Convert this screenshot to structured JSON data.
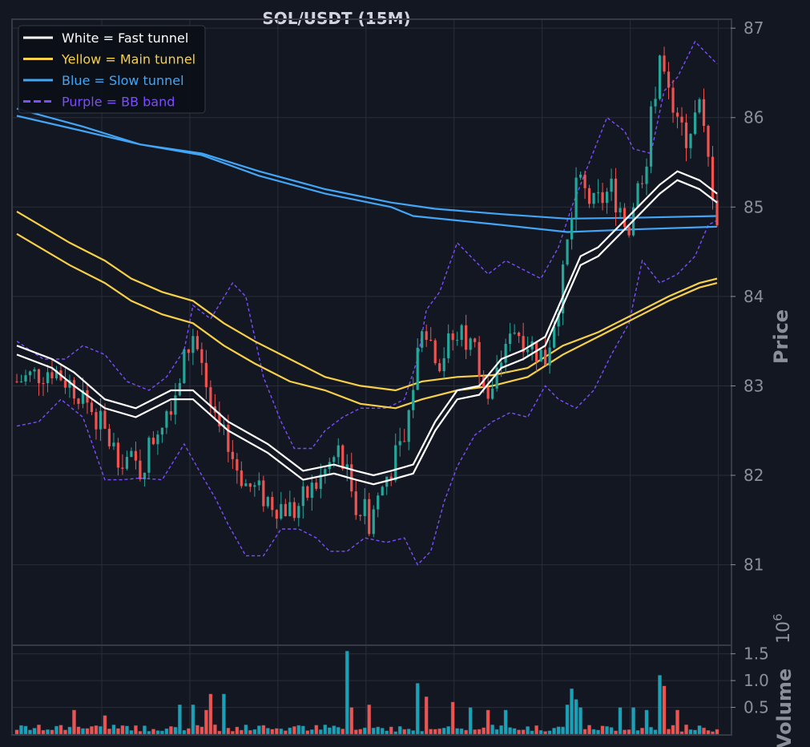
{
  "chart_data": {
    "type": "candlestick",
    "title": "SOL/USDT (15M)",
    "ylabel": "Price",
    "volume_label": "Volume",
    "volume_exponent": "10",
    "volume_exponent_power": "6",
    "price_ticks": [
      81,
      82,
      83,
      84,
      85,
      86,
      87
    ],
    "volume_ticks": [
      "0.5",
      "1.0",
      "1.5"
    ],
    "ylim": [
      80.1,
      87.1
    ],
    "volume_ylim_millions": [
      0,
      1.6
    ],
    "candle_count": 160,
    "colors": {
      "background": "#131722",
      "grid": "#2a2e39",
      "up": "#26a69a",
      "down": "#ef5350",
      "volume_up": "#17a2b8",
      "volume_down": "#ef5350",
      "fast": "#ffffff",
      "main": "#f7d04a",
      "slow": "#42a5f5",
      "bb": "#7c4dff"
    },
    "legend": [
      {
        "label": "White = Fast tunnel",
        "color": "#ffffff",
        "style": "solid"
      },
      {
        "label": "Yellow = Main tunnel",
        "color": "#f7d04a",
        "style": "solid"
      },
      {
        "label": "Blue = Slow tunnel",
        "color": "#42a5f5",
        "style": "solid"
      },
      {
        "label": "Purple = BB band",
        "color": "#7c4dff",
        "style": "dashed"
      }
    ],
    "close_path": [
      [
        0,
        83.05
      ],
      [
        8,
        83.2
      ],
      [
        15,
        82.9
      ],
      [
        22,
        82.3
      ],
      [
        28,
        82.05
      ],
      [
        32,
        82.55
      ],
      [
        36,
        82.95
      ],
      [
        40,
        83.6
      ],
      [
        45,
        82.6
      ],
      [
        52,
        81.9
      ],
      [
        58,
        81.7
      ],
      [
        63,
        81.6
      ],
      [
        68,
        81.9
      ],
      [
        73,
        82.25
      ],
      [
        77,
        81.7
      ],
      [
        80,
        81.5
      ],
      [
        84,
        82.0
      ],
      [
        88,
        82.35
      ],
      [
        92,
        83.7
      ],
      [
        96,
        83.3
      ],
      [
        100,
        83.6
      ],
      [
        104,
        83.4
      ],
      [
        108,
        82.9
      ],
      [
        112,
        83.7
      ],
      [
        116,
        83.5
      ],
      [
        120,
        83.3
      ],
      [
        124,
        84.2
      ],
      [
        127,
        85.3
      ],
      [
        131,
        85.0
      ],
      [
        135,
        85.2
      ],
      [
        139,
        84.8
      ],
      [
        143,
        85.6
      ],
      [
        146,
        86.7
      ],
      [
        149,
        86.0
      ],
      [
        152,
        85.8
      ],
      [
        155,
        86.1
      ],
      [
        159,
        84.9
      ]
    ],
    "fast_upper": [
      [
        0,
        83.45
      ],
      [
        8,
        83.3
      ],
      [
        13,
        83.15
      ],
      [
        20,
        82.85
      ],
      [
        27,
        82.75
      ],
      [
        35,
        82.95
      ],
      [
        40,
        82.95
      ],
      [
        48,
        82.6
      ],
      [
        57,
        82.35
      ],
      [
        65,
        82.05
      ],
      [
        72,
        82.12
      ],
      [
        77,
        82.05
      ],
      [
        81,
        82.0
      ],
      [
        85,
        82.05
      ],
      [
        90,
        82.12
      ],
      [
        95,
        82.6
      ],
      [
        100,
        82.95
      ],
      [
        105,
        83.0
      ],
      [
        110,
        83.3
      ],
      [
        115,
        83.4
      ],
      [
        120,
        83.55
      ],
      [
        124,
        84.0
      ],
      [
        128,
        84.45
      ],
      [
        132,
        84.55
      ],
      [
        137,
        84.8
      ],
      [
        141,
        85.0
      ],
      [
        146,
        85.25
      ],
      [
        150,
        85.4
      ],
      [
        155,
        85.3
      ],
      [
        159,
        85.15
      ]
    ],
    "fast_lower": [
      [
        0,
        83.35
      ],
      [
        8,
        83.2
      ],
      [
        13,
        83.0
      ],
      [
        20,
        82.75
      ],
      [
        27,
        82.65
      ],
      [
        35,
        82.85
      ],
      [
        40,
        82.85
      ],
      [
        48,
        82.5
      ],
      [
        57,
        82.25
      ],
      [
        65,
        81.95
      ],
      [
        72,
        82.02
      ],
      [
        77,
        81.95
      ],
      [
        81,
        81.9
      ],
      [
        85,
        81.95
      ],
      [
        90,
        82.02
      ],
      [
        95,
        82.5
      ],
      [
        100,
        82.85
      ],
      [
        105,
        82.9
      ],
      [
        110,
        83.2
      ],
      [
        115,
        83.3
      ],
      [
        120,
        83.45
      ],
      [
        124,
        83.9
      ],
      [
        128,
        84.35
      ],
      [
        132,
        84.45
      ],
      [
        137,
        84.7
      ],
      [
        141,
        84.9
      ],
      [
        146,
        85.15
      ],
      [
        150,
        85.3
      ],
      [
        155,
        85.2
      ],
      [
        159,
        85.05
      ]
    ],
    "main_upper": [
      [
        0,
        84.95
      ],
      [
        12,
        84.6
      ],
      [
        20,
        84.4
      ],
      [
        26,
        84.2
      ],
      [
        33,
        84.05
      ],
      [
        40,
        83.95
      ],
      [
        47,
        83.7
      ],
      [
        54,
        83.5
      ],
      [
        62,
        83.3
      ],
      [
        70,
        83.1
      ],
      [
        78,
        83.0
      ],
      [
        86,
        82.95
      ],
      [
        92,
        83.05
      ],
      [
        100,
        83.1
      ],
      [
        108,
        83.12
      ],
      [
        116,
        83.2
      ],
      [
        124,
        83.45
      ],
      [
        132,
        83.6
      ],
      [
        140,
        83.8
      ],
      [
        148,
        84.0
      ],
      [
        155,
        84.15
      ],
      [
        159,
        84.2
      ]
    ],
    "main_lower": [
      [
        0,
        84.7
      ],
      [
        12,
        84.35
      ],
      [
        20,
        84.15
      ],
      [
        26,
        83.95
      ],
      [
        33,
        83.8
      ],
      [
        40,
        83.7
      ],
      [
        47,
        83.45
      ],
      [
        54,
        83.25
      ],
      [
        62,
        83.05
      ],
      [
        70,
        82.95
      ],
      [
        78,
        82.8
      ],
      [
        86,
        82.75
      ],
      [
        92,
        82.85
      ],
      [
        100,
        82.95
      ],
      [
        108,
        83.0
      ],
      [
        116,
        83.1
      ],
      [
        124,
        83.35
      ],
      [
        132,
        83.55
      ],
      [
        140,
        83.75
      ],
      [
        148,
        83.95
      ],
      [
        155,
        84.1
      ],
      [
        159,
        84.15
      ]
    ],
    "slow_upper": [
      [
        0,
        86.1
      ],
      [
        15,
        85.9
      ],
      [
        28,
        85.7
      ],
      [
        42,
        85.6
      ],
      [
        55,
        85.4
      ],
      [
        70,
        85.2
      ],
      [
        85,
        85.05
      ],
      [
        95,
        84.98
      ],
      [
        110,
        84.92
      ],
      [
        125,
        84.87
      ],
      [
        140,
        84.88
      ],
      [
        159,
        84.9
      ]
    ],
    "slow_lower": [
      [
        0,
        86.02
      ],
      [
        15,
        85.85
      ],
      [
        28,
        85.7
      ],
      [
        42,
        85.58
      ],
      [
        55,
        85.35
      ],
      [
        70,
        85.15
      ],
      [
        85,
        85.0
      ],
      [
        90,
        84.9
      ],
      [
        110,
        84.8
      ],
      [
        125,
        84.72
      ],
      [
        140,
        84.75
      ],
      [
        159,
        84.78
      ]
    ],
    "bb_upper": [
      [
        0,
        83.5
      ],
      [
        6,
        83.3
      ],
      [
        11,
        83.3
      ],
      [
        15,
        83.45
      ],
      [
        20,
        83.35
      ],
      [
        25,
        83.05
      ],
      [
        30,
        82.95
      ],
      [
        34,
        83.1
      ],
      [
        38,
        83.4
      ],
      [
        40,
        83.9
      ],
      [
        44,
        83.75
      ],
      [
        49,
        84.15
      ],
      [
        52,
        84.0
      ],
      [
        56,
        83.1
      ],
      [
        60,
        82.6
      ],
      [
        63,
        82.3
      ],
      [
        67,
        82.3
      ],
      [
        70,
        82.5
      ],
      [
        74,
        82.65
      ],
      [
        78,
        82.75
      ],
      [
        84,
        82.75
      ],
      [
        88,
        82.85
      ],
      [
        91,
        83.3
      ],
      [
        93,
        83.85
      ],
      [
        96,
        84.05
      ],
      [
        100,
        84.6
      ],
      [
        103,
        84.45
      ],
      [
        107,
        84.25
      ],
      [
        111,
        84.4
      ],
      [
        115,
        84.3
      ],
      [
        119,
        84.2
      ],
      [
        123,
        84.55
      ],
      [
        126,
        85.0
      ],
      [
        130,
        85.5
      ],
      [
        134,
        86.0
      ],
      [
        138,
        85.85
      ],
      [
        140,
        85.65
      ],
      [
        144,
        85.6
      ],
      [
        147,
        86.3
      ],
      [
        150,
        86.45
      ],
      [
        154,
        86.85
      ],
      [
        157,
        86.7
      ],
      [
        159,
        86.6
      ]
    ],
    "bb_lower": [
      [
        0,
        82.55
      ],
      [
        5,
        82.6
      ],
      [
        10,
        82.85
      ],
      [
        15,
        82.65
      ],
      [
        20,
        81.95
      ],
      [
        24,
        81.95
      ],
      [
        28,
        81.97
      ],
      [
        33,
        81.95
      ],
      [
        38,
        82.35
      ],
      [
        42,
        82.0
      ],
      [
        45,
        81.75
      ],
      [
        48,
        81.45
      ],
      [
        52,
        81.1
      ],
      [
        56,
        81.1
      ],
      [
        60,
        81.4
      ],
      [
        64,
        81.4
      ],
      [
        68,
        81.3
      ],
      [
        71,
        81.15
      ],
      [
        75,
        81.15
      ],
      [
        79,
        81.3
      ],
      [
        84,
        81.25
      ],
      [
        88,
        81.3
      ],
      [
        91,
        81.0
      ],
      [
        94,
        81.15
      ],
      [
        97,
        81.7
      ],
      [
        100,
        82.1
      ],
      [
        104,
        82.45
      ],
      [
        108,
        82.6
      ],
      [
        112,
        82.7
      ],
      [
        116,
        82.65
      ],
      [
        120,
        83.0
      ],
      [
        123,
        82.85
      ],
      [
        127,
        82.75
      ],
      [
        131,
        82.95
      ],
      [
        135,
        83.35
      ],
      [
        139,
        83.7
      ],
      [
        142,
        84.4
      ],
      [
        146,
        84.15
      ],
      [
        150,
        84.25
      ],
      [
        154,
        84.45
      ],
      [
        157,
        84.8
      ],
      [
        159,
        84.85
      ]
    ],
    "volume_spikes": [
      [
        13,
        0.45
      ],
      [
        20,
        0.35
      ],
      [
        37,
        0.55
      ],
      [
        40,
        0.55
      ],
      [
        43,
        0.45
      ],
      [
        44,
        0.75
      ],
      [
        47,
        0.75
      ],
      [
        75,
        1.55
      ],
      [
        76,
        0.5
      ],
      [
        80,
        0.55
      ],
      [
        91,
        0.95
      ],
      [
        93,
        0.7
      ],
      [
        99,
        0.6
      ],
      [
        103,
        0.5
      ],
      [
        107,
        0.45
      ],
      [
        111,
        0.45
      ],
      [
        125,
        0.55
      ],
      [
        126,
        0.85
      ],
      [
        127,
        0.65
      ],
      [
        128,
        0.5
      ],
      [
        137,
        0.5
      ],
      [
        140,
        0.5
      ],
      [
        143,
        0.45
      ],
      [
        146,
        1.1
      ],
      [
        147,
        0.9
      ],
      [
        150,
        0.45
      ]
    ]
  }
}
